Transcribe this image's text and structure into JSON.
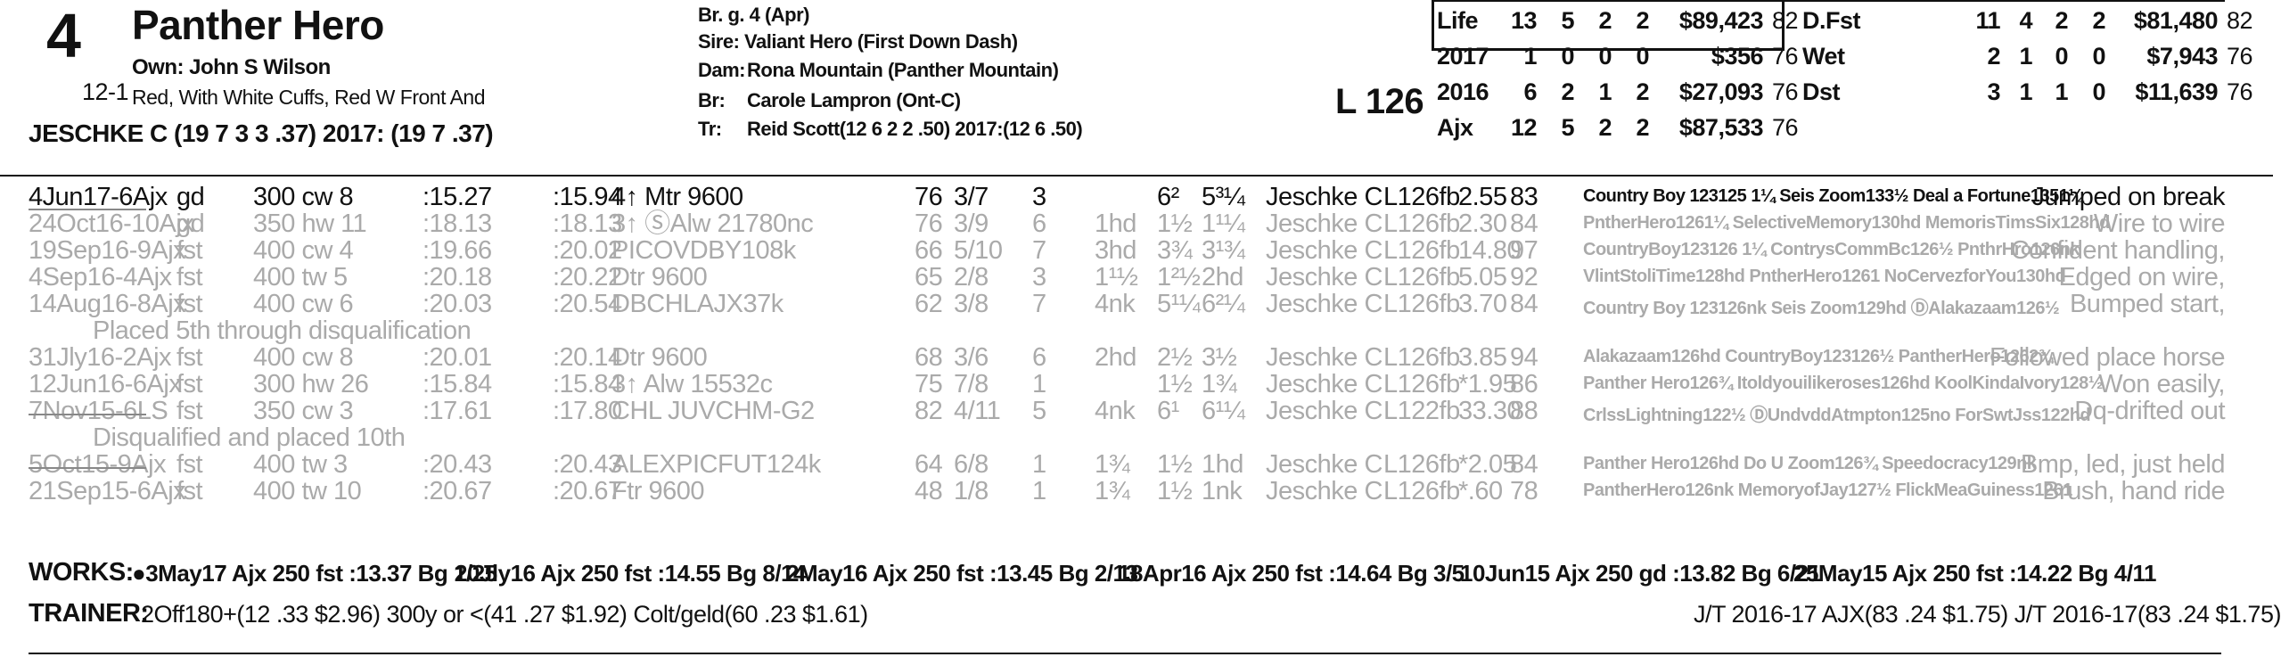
{
  "horse": {
    "number": "4",
    "name": "Panther Hero",
    "odds": "12-1",
    "owner": "Own: John S Wilson",
    "silks": "Red, With White Cuffs, Red W Front And",
    "jockey_line": "JESCHKE C (19 7 3 3 .37) 2017: (19 7 .37)"
  },
  "pedigree": {
    "sex_age": "Br. g. 4 (Apr)",
    "sire": "Sire: Valiant Hero (First Down Dash)",
    "dam_label": "Dam:",
    "dam": "Rona Mountain (Panther Mountain)",
    "breeder_label": "Br:",
    "breeder": "Carole Lampron (Ont-C)",
    "trainer_label": "Tr:",
    "trainer": "Reid Scott(12 6 2 2 .50)  2017:(12 6 .50)"
  },
  "weight": "L 126",
  "stats_left": [
    {
      "label": "Life",
      "starts": "13",
      "w": "5",
      "p": "2",
      "s": "2",
      "earn": "$89,423",
      "fig": "82"
    },
    {
      "label": "2017",
      "starts": "1",
      "w": "0",
      "p": "0",
      "s": "0",
      "earn": "$356",
      "fig": "76"
    },
    {
      "label": "2016",
      "starts": "6",
      "w": "2",
      "p": "1",
      "s": "2",
      "earn": "$27,093",
      "fig": "76"
    },
    {
      "label": "Ajx",
      "starts": "12",
      "w": "5",
      "p": "2",
      "s": "2",
      "earn": "$87,533",
      "fig": "76"
    }
  ],
  "stats_right": [
    {
      "label": "D.Fst",
      "starts": "11",
      "w": "4",
      "p": "2",
      "s": "2",
      "earn": "$81,480",
      "fig": "82"
    },
    {
      "label": "Wet",
      "starts": "2",
      "w": "1",
      "p": "0",
      "s": "0",
      "earn": "$7,943",
      "fig": "76"
    },
    {
      "label": "Dst",
      "starts": "3",
      "w": "1",
      "p": "1",
      "s": "0",
      "earn": "$11,639",
      "fig": "76"
    }
  ],
  "past_performances": [
    {
      "date": "4Jun17-6Ajx",
      "cond": "gd",
      "dist": "300 cw 8",
      "t1": ":15.27",
      "t2": ":15.94",
      "race": "4↑ Mtr 9600",
      "sp": "76",
      "pp": "3/7",
      "st": "3",
      "c1": "",
      "c2": "6²",
      "fin": "5³¼",
      "jock": "Jeschke C",
      "wt": "L126fb",
      "odds": "2.55",
      "fig": "83",
      "comment": "Country Boy 123125 1¼  Seis Zoom133½  Deal a Fortune1351¼",
      "remark": "Jumped on break",
      "dim": false
    },
    {
      "date": "24Oct16-10Ajx",
      "cond": "gd",
      "dist": "350 hw 11",
      "t1": ":18.13",
      "t2": ":18.13",
      "race": "3↑ ⓈAlw 21780nc",
      "sp": "76",
      "pp": "3/9",
      "st": "6",
      "c1": "1hd",
      "c2": "1½",
      "fin": "1¹¼",
      "jock": "Jeschke C",
      "wt": "L126fb",
      "odds": "2.30",
      "fig": "84",
      "comment": "PntherHero1261¼ SelectiveMemory130hd MemorisTimsSix128hd",
      "remark": "Wire to wire",
      "dim": true
    },
    {
      "date": "19Sep16-9Ajx",
      "cond": "fst",
      "dist": "400 cw 4",
      "t1": ":19.66",
      "t2": ":20.02",
      "race": "PICOVDBY108k",
      "sp": "66",
      "pp": "5/10",
      "st": "7",
      "c1": "3hd",
      "c2": "3¾",
      "fin": "3¹¾",
      "jock": "Jeschke C",
      "wt": "L126fb",
      "odds": "14.80",
      "fig": "97",
      "comment": "CountryBoy123126 1¼ ContrysCommBc126½ PnthrHro126nk",
      "remark": "Confident handling,",
      "dim": true
    },
    {
      "date": "4Sep16-4Ajx",
      "cond": "fst",
      "dist": "400 tw 5",
      "t1": ":20.18",
      "t2": ":20.22",
      "race": "Dtr 9600",
      "sp": "65",
      "pp": "2/8",
      "st": "3",
      "c1": "1¹½",
      "c2": "1²½",
      "fin": "2hd",
      "jock": "Jeschke C",
      "wt": "L126fb",
      "odds": "5.05",
      "fig": "92",
      "comment": "VlintStoliTime128hd PntherHero1261 NoCervezforYou130hd",
      "remark": "Edged on wire,",
      "dim": true
    },
    {
      "date": "14Aug16-8Ajx",
      "cond": "fst",
      "dist": "400 cw 6",
      "t1": ":20.03",
      "t2": ":20.54",
      "race": "DBCHLAJX37k",
      "sp": "62",
      "pp": "3/8",
      "st": "7",
      "c1": "4nk",
      "c2": "5¹¼",
      "fin": "6²¼",
      "jock": "Jeschke C",
      "wt": "L126fb",
      "odds": "3.70",
      "fig": "84",
      "comment": "Country Boy 123126nk Seis Zoom129hd ⒹAlakazaam126½",
      "remark": "Bumped start,",
      "dim": true,
      "note": "Placed 5th through disqualification"
    },
    {
      "date": "31Jly16-2Ajx",
      "cond": "fst",
      "dist": "400 cw 8",
      "t1": ":20.01",
      "t2": ":20.14",
      "race": "Dtr 9600",
      "sp": "68",
      "pp": "3/6",
      "st": "6",
      "c1": "2hd",
      "c2": "2½",
      "fin": "3½",
      "jock": "Jeschke C",
      "wt": "L126fb",
      "odds": "3.85",
      "fig": "94",
      "comment": "Alakazaam126hd CountryBoy123126½ PantherHero1262¾",
      "remark": "Followed place horse",
      "dim": true
    },
    {
      "date": "12Jun16-6Ajx",
      "cond": "fst",
      "dist": "300 hw 26",
      "t1": ":15.84",
      "t2": ":15.84",
      "race": "3↑ Alw 15532c",
      "sp": "75",
      "pp": "7/8",
      "st": "1",
      "c1": "",
      "c2": "1½",
      "fin": "1¾",
      "jock": "Jeschke C",
      "wt": "L126fb",
      "odds": "*1.95",
      "fig": "86",
      "comment": "Panther Hero126¾ Itoldyouilikeroses126hd KoolKindaIvory128½",
      "remark": "Won easily,",
      "dim": true
    },
    {
      "date": "7Nov15-6LS",
      "cond": "fst",
      "dist": "350 cw 3",
      "t1": ":17.61",
      "t2": ":17.80",
      "race": "CHL JUVCHM-G2",
      "sp": "82",
      "pp": "4/11",
      "st": "5",
      "c1": "4nk",
      "c2": "6¹",
      "fin": "6¹¼",
      "jock": "Jeschke C",
      "wt": "L122fb",
      "odds": "33.30",
      "fig": "88",
      "comment": "CrlssLightning122½ ⒹUndvddAtmpton125no ForSwtJss122hd",
      "remark": "Dq-drifted out",
      "dim": true,
      "note": "Disqualified and placed 10th"
    },
    {
      "date": "5Oct15-9Ajx",
      "cond": "fst",
      "dist": "400 tw 3",
      "t1": ":20.43",
      "t2": ":20.43",
      "race": "ALEXPICFUT124k",
      "sp": "64",
      "pp": "6/8",
      "st": "1",
      "c1": "1¾",
      "c2": "1½",
      "fin": "1hd",
      "jock": "Jeschke C",
      "wt": "L126fb",
      "odds": "*2.05",
      "fig": "84",
      "comment": "Panther Hero126hd Do U Zoom126¾ Speedocracy129nk",
      "remark": "Bmp, led, just held",
      "dim": true
    },
    {
      "date": "21Sep15-6Ajx",
      "cond": "fst",
      "dist": "400 tw 10",
      "t1": ":20.67",
      "t2": ":20.67",
      "race": "Ftr 9600",
      "sp": "48",
      "pp": "1/8",
      "st": "1",
      "c1": "1¾",
      "c2": "1½",
      "fin": "1nk",
      "jock": "Jeschke C",
      "wt": "L126fb",
      "odds": "*.60",
      "fig": "78",
      "comment": "PantherHero126nk MemoryofJay127½ FlickMeaGuiness1261",
      "remark": "Brush, hand ride",
      "dim": true
    }
  ],
  "works": {
    "label": "WORKS:",
    "items": [
      "●3May17 Ajx 250 fst :13.37 Bg 1/25",
      "20Jly16 Ajx 250 fst :14.55 Bg 8/14",
      "2May16 Ajx 250 fst :13.45 Bg 2/13",
      "18Apr16 Ajx 250 fst :14.64 Bg 3/5",
      "10Jun15 Ajx 250 gd :13.82 Bg 6/21",
      "25May15 Ajx 250 fst :14.22 Bg 4/11"
    ]
  },
  "trainer_stats": {
    "label": "TRAINER:",
    "text": "2Off180+(12 .33 $2.96) 300y or <(41 .27 $1.92) Colt/geld(60 .23 $1.61)",
    "jt": "J/T 2016-17 AJX(83 .24 $1.75)  J/T 2016-17(83 .24 $1.75)"
  }
}
